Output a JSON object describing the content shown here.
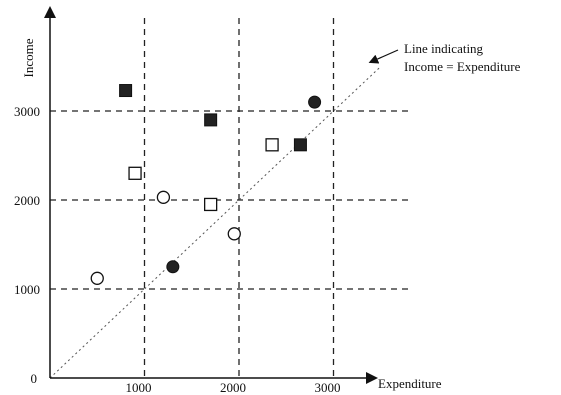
{
  "chart_data": {
    "type": "scatter",
    "title": "",
    "xlabel": "Expenditure",
    "ylabel": "Income",
    "xlim": [
      0,
      3300
    ],
    "ylim": [
      0,
      3300
    ],
    "x_ticks": [
      1000,
      2000,
      3000
    ],
    "y_ticks": [
      1000,
      2000,
      3000
    ],
    "origin_label": "0",
    "grid": "dashed lines at 1000, 2000, 3000 on both axes",
    "reference_line": {
      "equation": "Income = Expenditure",
      "label_lines": [
        "Line indicating",
        "Income = Expenditure"
      ]
    },
    "series": [
      {
        "marker": "filled-square",
        "points": [
          [
            800,
            3230
          ],
          [
            1700,
            2900
          ],
          [
            2650,
            2620
          ]
        ]
      },
      {
        "marker": "open-square",
        "points": [
          [
            900,
            2300
          ],
          [
            1700,
            1950
          ],
          [
            2350,
            2620
          ]
        ]
      },
      {
        "marker": "filled-circle",
        "points": [
          [
            1300,
            1250
          ],
          [
            2800,
            3100
          ]
        ]
      },
      {
        "marker": "open-circle",
        "points": [
          [
            500,
            1120
          ],
          [
            1200,
            2030
          ],
          [
            1950,
            1620
          ]
        ]
      }
    ]
  }
}
